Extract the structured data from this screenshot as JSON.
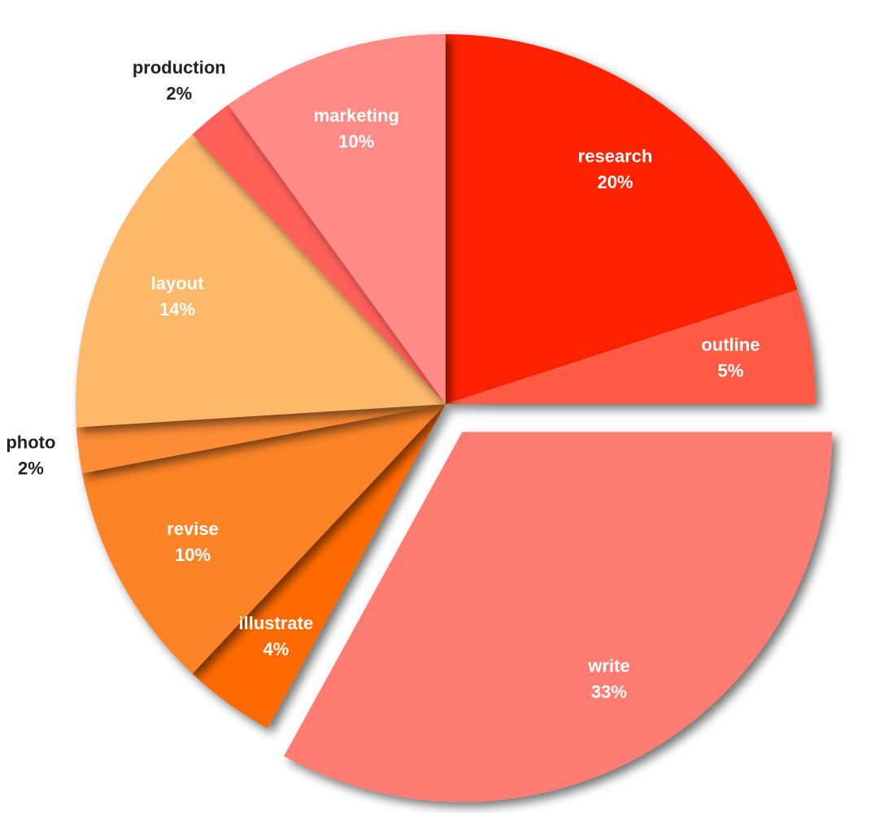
{
  "chart_data": {
    "type": "pie",
    "categories": [
      "research",
      "outline",
      "write",
      "illustrate",
      "revise",
      "photo",
      "layout",
      "production",
      "marketing"
    ],
    "values": [
      20,
      5,
      33,
      4,
      10,
      2,
      14,
      2,
      10
    ],
    "value_labels": [
      "20%",
      "5%",
      "33%",
      "4%",
      "10%",
      "2%",
      "14%",
      "2%",
      "10%"
    ],
    "colors": [
      "#ff2400",
      "#ff5a45",
      "#ff7b73",
      "#ff6a00",
      "#fd8428",
      "#fd8c35",
      "#fdb86a",
      "#ff6058",
      "#ff8a86"
    ],
    "exploded": "write"
  }
}
